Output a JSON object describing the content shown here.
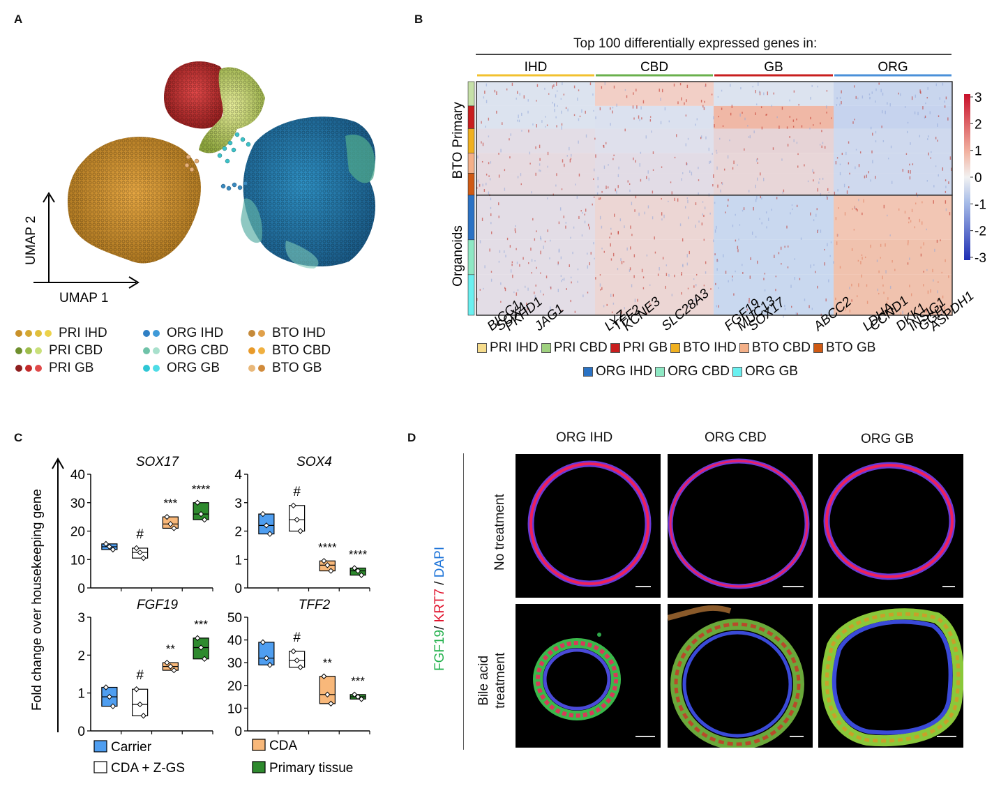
{
  "panels": {
    "a": "A",
    "b": "B",
    "c": "C",
    "d": "D"
  },
  "panel_a": {
    "axis_y": "UMAP 2",
    "axis_x": "UMAP 1",
    "legend": [
      {
        "label": "PRI IHD",
        "colors": [
          "#c9912a",
          "#d4a832",
          "#e0bf3c",
          "#ecd24a"
        ]
      },
      {
        "label": "ORG IHD",
        "colors": [
          "#2f7fc4",
          "#3f9ad8"
        ]
      },
      {
        "label": "BTO IHD",
        "colors": [
          "#c58a3a",
          "#e0a04a"
        ]
      },
      {
        "label": "PRI CBD",
        "colors": [
          "#6f8f2e",
          "#9dbd4b",
          "#c9e07a"
        ]
      },
      {
        "label": "ORG CBD",
        "colors": [
          "#6fc2a8",
          "#a8e0cc"
        ]
      },
      {
        "label": "BTO CBD",
        "colors": [
          "#e89a2a",
          "#f0b040"
        ]
      },
      {
        "label": "PRI GB",
        "colors": [
          "#8e1f1f",
          "#c42a2a",
          "#e04a4a"
        ]
      },
      {
        "label": "ORG GB",
        "colors": [
          "#2ec6d4",
          "#4edce6"
        ]
      },
      {
        "label": "BTO GB",
        "colors": [
          "#e9b87a",
          "#d08a3a"
        ]
      }
    ]
  },
  "panel_b": {
    "title": "Top 100 differentially expressed genes in:",
    "col_groups": [
      "IHD",
      "CBD",
      "GB",
      "ORG"
    ],
    "row_groups": [
      "Primary",
      "BTO",
      "Organoids"
    ],
    "scale": [
      "3",
      "2",
      "1",
      "0",
      "-1",
      "-2",
      "-3"
    ],
    "genes": [
      "BICC1",
      "SOX4",
      "PKHD1",
      "JAG1",
      "LYZ",
      "TFF2",
      "KCNE3",
      "SLC28A3",
      "FGF19",
      "MUC13",
      "SOX17",
      "ABCC2",
      "LDHA",
      "CCND1",
      "DKK1",
      "INSIG1",
      "GGH",
      "ASPDH1"
    ],
    "legend_row1": [
      {
        "label": "PRI IHD",
        "color": "#f6dc8c"
      },
      {
        "label": "PRI CBD",
        "color": "#9fd17f"
      },
      {
        "label": "PRI GB",
        "color": "#c81e1e"
      },
      {
        "label": "BTO IHD",
        "color": "#f0b020"
      },
      {
        "label": "BTO CBD",
        "color": "#f4b088"
      },
      {
        "label": "BTO GB",
        "color": "#cf5a14"
      }
    ],
    "legend_row2": [
      {
        "label": "ORG IHD",
        "color": "#2a72c4"
      },
      {
        "label": "ORG CBD",
        "color": "#8ee8c4"
      },
      {
        "label": "ORG GB",
        "color": "#6af0f0"
      }
    ]
  },
  "panel_c": {
    "ylabel": "Fold change over housekeeping gene",
    "legend": [
      {
        "label": "Carrier",
        "color": "#4f9ef0"
      },
      {
        "label": "CDA + Z-GS",
        "color": "#ffffff"
      },
      {
        "label": "CDA",
        "color": "#f8b87a"
      },
      {
        "label": "Primary tissue",
        "color": "#2e8a2e"
      }
    ]
  },
  "chart_data": [
    {
      "type": "box",
      "title": "SOX17",
      "categories": [
        "Carrier",
        "CDA + Z-GS",
        "CDA",
        "Primary tissue"
      ],
      "ylim": [
        0,
        40
      ],
      "yticks": [
        "40",
        "30",
        "20",
        "10",
        "0"
      ],
      "series": [
        {
          "name": "Carrier",
          "values": [
            14.5
          ]
        },
        {
          "name": "CDA + Z-GS",
          "values": [
            12.5
          ]
        },
        {
          "name": "CDA",
          "values": [
            22.5
          ]
        },
        {
          "name": "Primary tissue",
          "values": [
            27
          ]
        }
      ],
      "boxes": [
        [
          13.5,
          14.5,
          15.5
        ],
        [
          10.5,
          12.5,
          14
        ],
        [
          21,
          22.5,
          25
        ],
        [
          24,
          26,
          30
        ]
      ],
      "annotations": [
        "",
        "#",
        "***",
        "****"
      ]
    },
    {
      "type": "box",
      "title": "SOX4",
      "categories": [
        "Carrier",
        "CDA + Z-GS",
        "CDA",
        "Primary tissue"
      ],
      "ylim": [
        0,
        4
      ],
      "yticks": [
        "4",
        "3",
        "2",
        "1",
        "0"
      ],
      "series": [
        {
          "name": "Carrier",
          "values": [
            2.2
          ]
        },
        {
          "name": "CDA + Z-GS",
          "values": [
            2.4
          ]
        },
        {
          "name": "CDA",
          "values": [
            0.8
          ]
        },
        {
          "name": "Primary tissue",
          "values": [
            0.6
          ]
        }
      ],
      "boxes": [
        [
          1.9,
          2.2,
          2.6
        ],
        [
          2,
          2.4,
          2.9
        ],
        [
          0.6,
          0.8,
          0.95
        ],
        [
          0.45,
          0.6,
          0.7
        ]
      ],
      "annotations": [
        "",
        "#",
        "****",
        "****"
      ]
    },
    {
      "type": "box",
      "title": "FGF19",
      "categories": [
        "Carrier",
        "CDA + Z-GS",
        "CDA",
        "Primary tissue"
      ],
      "ylim": [
        0,
        3
      ],
      "yticks": [
        "3",
        "2",
        "1",
        "0"
      ],
      "series": [
        {
          "name": "Carrier",
          "values": [
            0.9
          ]
        },
        {
          "name": "CDA + Z-GS",
          "values": [
            0.7
          ]
        },
        {
          "name": "CDA",
          "values": [
            1.7
          ]
        },
        {
          "name": "Primary tissue",
          "values": [
            2.2
          ]
        }
      ],
      "boxes": [
        [
          0.65,
          0.9,
          1.15
        ],
        [
          0.4,
          0.7,
          1.1
        ],
        [
          1.6,
          1.7,
          1.8
        ],
        [
          1.9,
          2.2,
          2.45
        ]
      ],
      "annotations": [
        "",
        "#",
        "**",
        "***"
      ]
    },
    {
      "type": "box",
      "title": "TFF2",
      "categories": [
        "Carrier",
        "CDA + Z-GS",
        "CDA",
        "Primary tissue"
      ],
      "ylim": [
        0,
        50
      ],
      "yticks": [
        "50",
        "40",
        "30",
        "20",
        "10",
        "0"
      ],
      "series": [
        {
          "name": "Carrier",
          "values": [
            32
          ]
        },
        {
          "name": "CDA + Z-GS",
          "values": [
            31
          ]
        },
        {
          "name": "CDA",
          "values": [
            16
          ]
        },
        {
          "name": "Primary tissue",
          "values": [
            15
          ]
        }
      ],
      "boxes": [
        [
          29,
          32,
          39
        ],
        [
          28,
          31,
          35
        ],
        [
          12,
          16,
          24
        ],
        [
          14,
          15,
          16
        ]
      ],
      "annotations": [
        "",
        "#",
        "**",
        "***"
      ]
    }
  ],
  "panel_d": {
    "cols": [
      "ORG IHD",
      "ORG CBD",
      "ORG GB"
    ],
    "rows": [
      "No treatment",
      "Bile acid\ntreatment"
    ],
    "stain": {
      "fgf19": "FGF19",
      "sep1": "/ ",
      "krt7": "KRT7",
      "sep2": " / ",
      "dapi": "DAPI"
    }
  }
}
